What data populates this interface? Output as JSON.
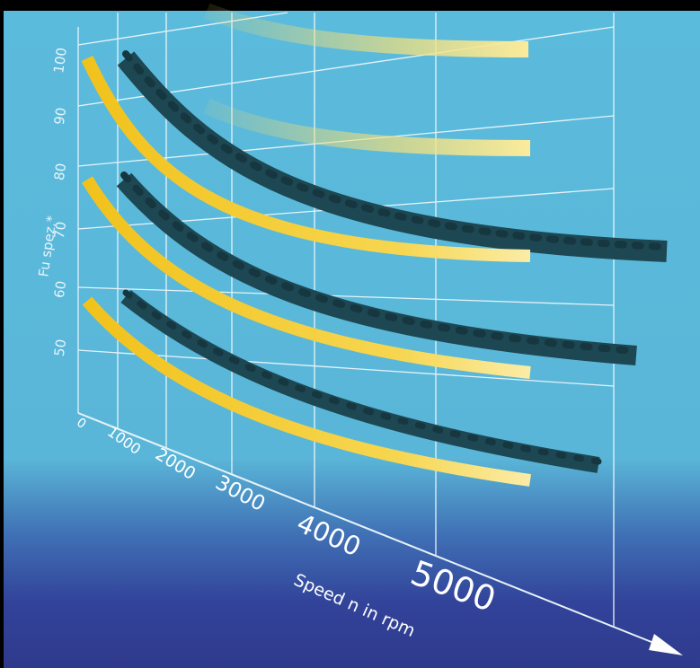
{
  "axis": {
    "y_title": "Fu spez.*",
    "y_labels": [
      "100",
      "90",
      "80",
      "70",
      "60",
      "50"
    ],
    "x_labels": [
      "0",
      "1000",
      "2000",
      "3000",
      "4000",
      "5000"
    ],
    "x_title": "Speed n in rpm"
  }
}
